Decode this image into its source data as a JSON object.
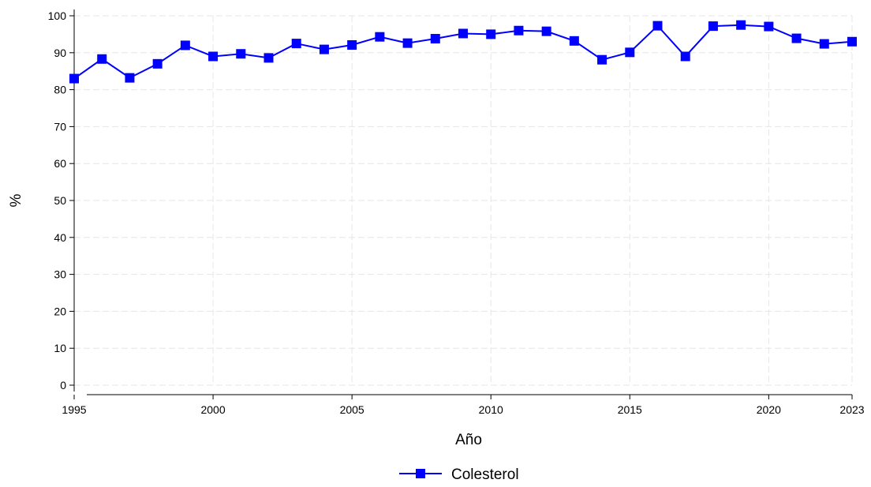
{
  "chart_data": {
    "type": "line",
    "title": "",
    "xlabel": "Año",
    "ylabel": "%",
    "x": [
      1995,
      1996,
      1997,
      1998,
      1999,
      2000,
      2001,
      2002,
      2003,
      2004,
      2005,
      2006,
      2007,
      2008,
      2009,
      2010,
      2011,
      2012,
      2013,
      2014,
      2015,
      2016,
      2017,
      2018,
      2019,
      2020,
      2021,
      2022,
      2023
    ],
    "series": [
      {
        "name": "Colesterol",
        "color": "#0000ff",
        "marker": "square",
        "values": [
          83.0,
          88.3,
          83.2,
          87.0,
          92.0,
          89.0,
          89.7,
          88.6,
          92.5,
          90.9,
          92.1,
          94.3,
          92.6,
          93.8,
          95.2,
          95.0,
          96.0,
          95.8,
          93.2,
          88.1,
          90.1,
          97.3,
          89.0,
          97.2,
          97.5,
          97.1,
          93.9,
          92.4,
          93.0
        ]
      }
    ],
    "xticks": [
      "1995",
      "2000",
      "2005",
      "2010",
      "2015",
      "2020",
      "2023"
    ],
    "yticks": [
      "0",
      "10",
      "20",
      "30",
      "40",
      "50",
      "60",
      "70",
      "80",
      "90",
      "100"
    ],
    "xlim": [
      1995,
      2023
    ],
    "ylim": [
      0,
      100
    ],
    "grid": true,
    "legend_position": "bottom-center"
  }
}
